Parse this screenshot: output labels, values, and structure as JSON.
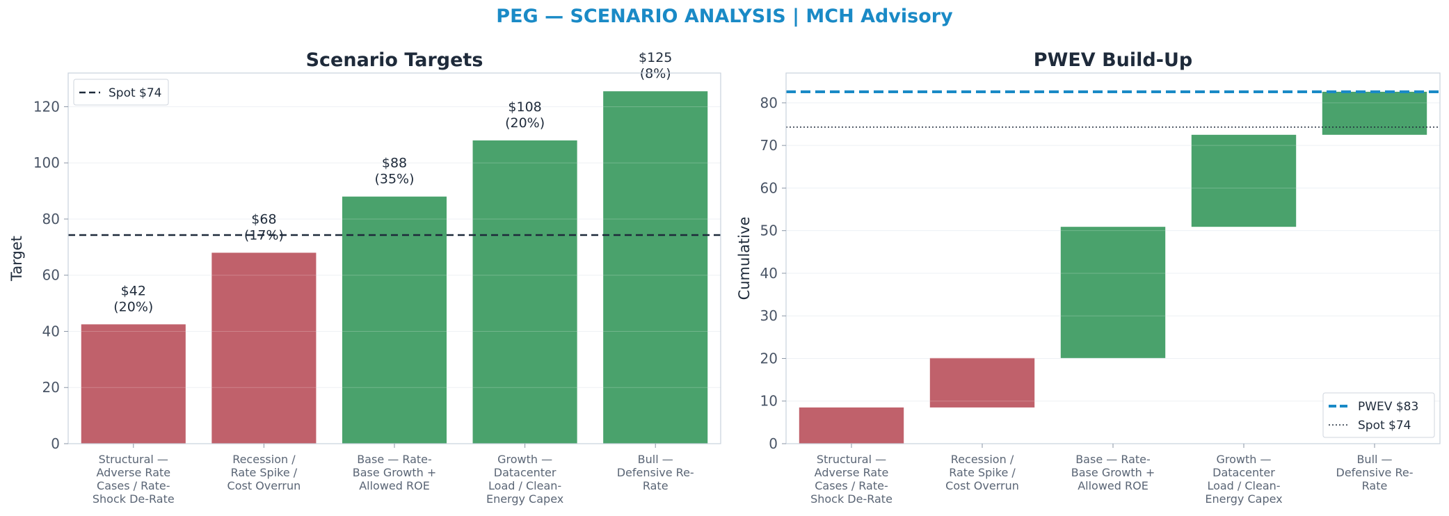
{
  "header": {
    "title": "PEG — SCENARIO ANALYSIS | MCH Advisory"
  },
  "colors": {
    "negative": "#c0616b",
    "positive": "#4aa26c",
    "pwev": "#1a8ac6",
    "spot": "#1e2a3a",
    "title": "#1a8ac6"
  },
  "chart_data": [
    {
      "type": "bar",
      "title": "Scenario Targets",
      "xlabel": "",
      "ylabel": "Target",
      "ylim": [
        0,
        132
      ],
      "yticks": [
        0,
        20,
        40,
        60,
        80,
        100,
        120
      ],
      "categories": [
        [
          "Structural —",
          "Adverse Rate",
          "Cases / Rate-",
          "Shock De-Rate"
        ],
        [
          "Recession /",
          "Rate Spike /",
          "Cost Overrun"
        ],
        [
          "Base — Rate-",
          "Base Growth +",
          "Allowed ROE"
        ],
        [
          "Growth —",
          "Datacenter",
          "Load / Clean-",
          "Energy Capex"
        ],
        [
          "Bull —",
          "Defensive Re-",
          "Rate"
        ]
      ],
      "values": [
        42.5,
        68,
        88,
        108,
        125.5
      ],
      "probabilities": [
        20,
        17,
        35,
        20,
        8
      ],
      "data_labels": [
        [
          "$42",
          "(20%)"
        ],
        [
          "$68",
          "(17%)"
        ],
        [
          "$88",
          "(35%)"
        ],
        [
          "$108",
          "(20%)"
        ],
        [
          "$125",
          "(8%)"
        ]
      ],
      "bar_colors": [
        "negative",
        "negative",
        "positive",
        "positive",
        "positive"
      ],
      "reference_lines": [
        {
          "label": "Spot $74",
          "value": 74.3,
          "style": "dashed"
        }
      ],
      "legend": "top-left",
      "grid": true
    },
    {
      "type": "bar",
      "subtype": "waterfall",
      "title": "PWEV Build-Up",
      "xlabel": "",
      "ylabel": "Cumulative",
      "ylim": [
        0,
        87
      ],
      "yticks": [
        0,
        10,
        20,
        30,
        40,
        50,
        60,
        70,
        80
      ],
      "categories": [
        [
          "Structural —",
          "Adverse Rate",
          "Cases / Rate-",
          "Shock De-Rate"
        ],
        [
          "Recession /",
          "Rate Spike /",
          "Cost Overrun"
        ],
        [
          "Base — Rate-",
          "Base Growth +",
          "Allowed ROE"
        ],
        [
          "Growth —",
          "Datacenter",
          "Load / Clean-",
          "Energy Capex"
        ],
        [
          "Bull —",
          "Defensive Re-",
          "Rate"
        ]
      ],
      "segments": [
        {
          "start": 0,
          "end": 8.5
        },
        {
          "start": 8.5,
          "end": 20.1
        },
        {
          "start": 20.1,
          "end": 50.9
        },
        {
          "start": 50.9,
          "end": 72.5
        },
        {
          "start": 72.5,
          "end": 82.6
        }
      ],
      "bar_colors": [
        "negative",
        "negative",
        "positive",
        "positive",
        "positive"
      ],
      "reference_lines": [
        {
          "label": "PWEV $83",
          "value": 82.6,
          "style": "dashed-thick"
        },
        {
          "label": "Spot $74",
          "value": 74.3,
          "style": "dotted"
        }
      ],
      "legend": "bottom-right",
      "grid": true
    }
  ]
}
